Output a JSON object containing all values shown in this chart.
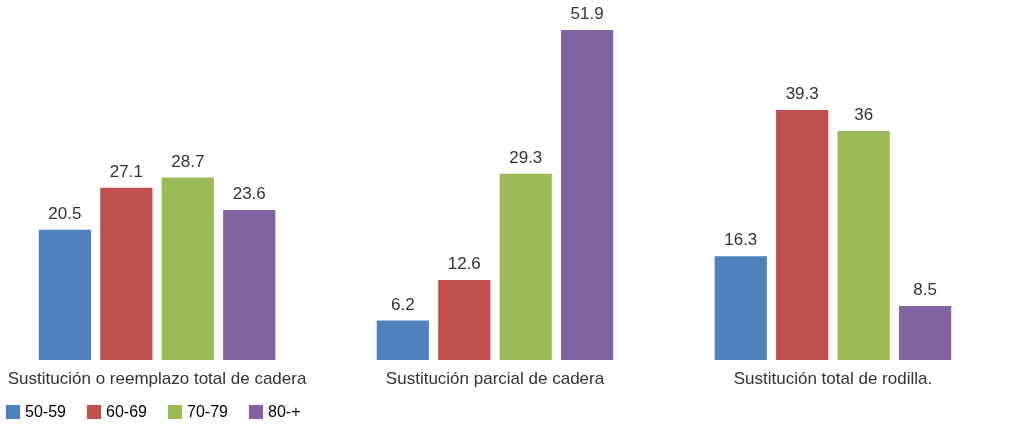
{
  "chart_data": {
    "type": "bar",
    "categories": [
      "Sustitución o reemplazo total de cadera",
      "Sustitución parcial de cadera",
      "Sustitución total de rodilla."
    ],
    "series": [
      {
        "name": "50-59",
        "color": "#4f81bd",
        "values": [
          20.5,
          6.2,
          16.3
        ]
      },
      {
        "name": "60-69",
        "color": "#c0504d",
        "values": [
          27.1,
          12.6,
          39.3
        ]
      },
      {
        "name": "70-79",
        "color": "#9bbb59",
        "values": [
          28.7,
          29.3,
          36
        ]
      },
      {
        "name": "80-+",
        "color": "#8064a2",
        "values": [
          23.6,
          51.9,
          8.5
        ]
      }
    ],
    "data_labels": true,
    "legend": "bottom",
    "grid": false,
    "tick_labels": "x"
  }
}
